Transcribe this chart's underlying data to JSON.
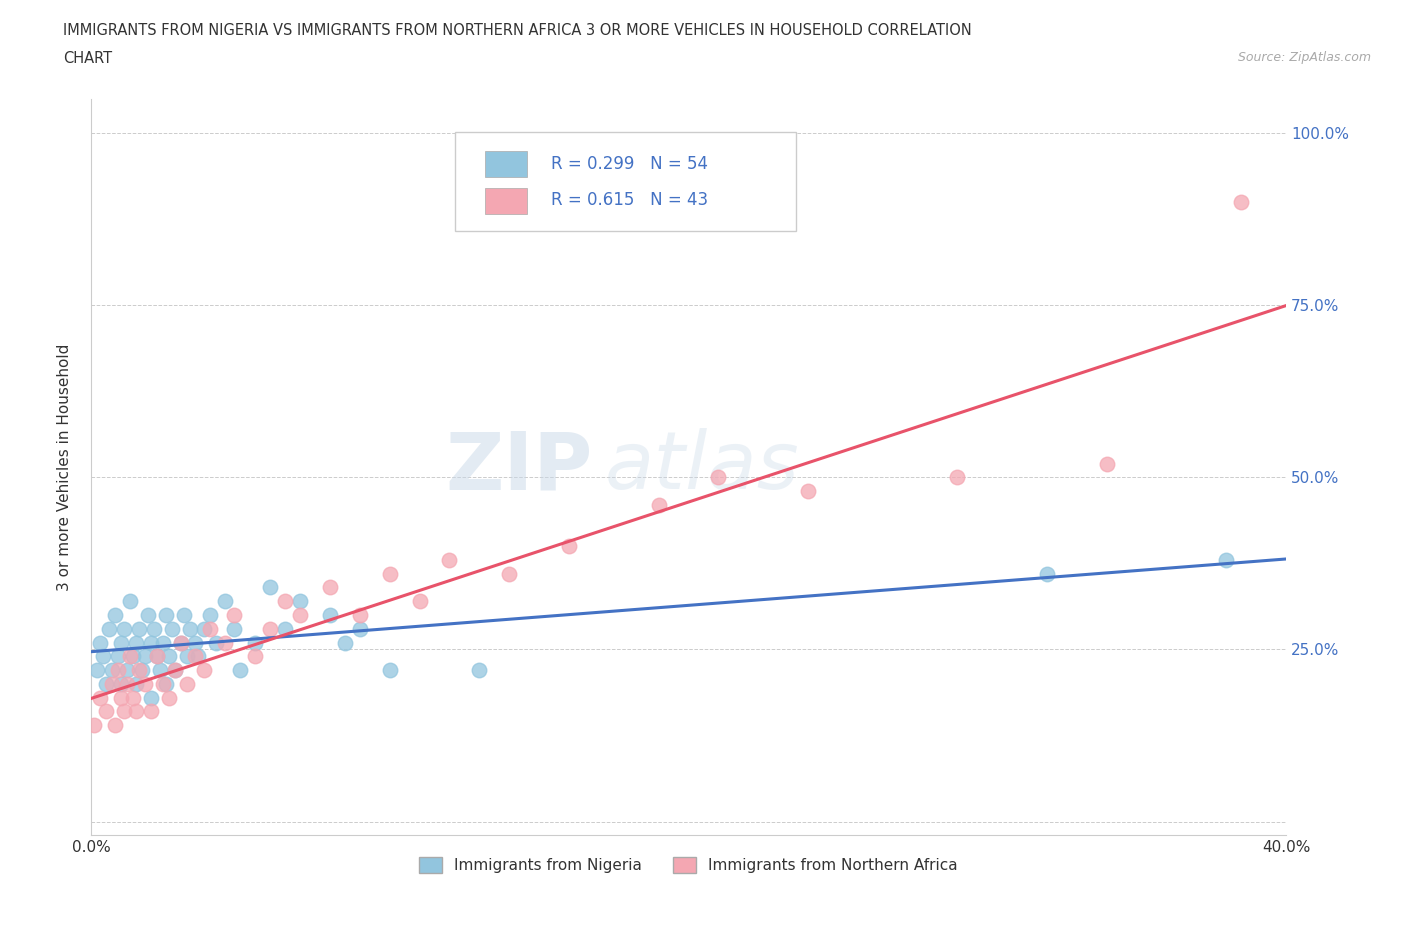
{
  "title_line1": "IMMIGRANTS FROM NIGERIA VS IMMIGRANTS FROM NORTHERN AFRICA 3 OR MORE VEHICLES IN HOUSEHOLD CORRELATION",
  "title_line2": "CHART",
  "source_text": "Source: ZipAtlas.com",
  "ylabel": "3 or more Vehicles in Household",
  "xmin": 0.0,
  "xmax": 0.4,
  "ymin": -0.02,
  "ymax": 1.05,
  "x_ticks": [
    0.0,
    0.1,
    0.2,
    0.3,
    0.4
  ],
  "x_tick_labels": [
    "0.0%",
    "",
    "",
    "",
    "40.0%"
  ],
  "y_ticks": [
    0.0,
    0.25,
    0.5,
    0.75,
    1.0
  ],
  "y_tick_labels": [
    "",
    "25.0%",
    "50.0%",
    "75.0%",
    "100.0%"
  ],
  "nigeria_color": "#92c5de",
  "n_africa_color": "#f4a7b2",
  "nigeria_line_color": "#4472c4",
  "n_africa_line_color": "#e8536a",
  "nigeria_R": 0.299,
  "nigeria_N": 54,
  "n_africa_R": 0.615,
  "n_africa_N": 43,
  "legend_label_nigeria": "Immigrants from Nigeria",
  "legend_label_n_africa": "Immigrants from Northern Africa",
  "watermark_zip": "ZIP",
  "watermark_atlas": "atlas",
  "background_color": "#ffffff",
  "grid_color": "#cccccc",
  "nigeria_x": [
    0.002,
    0.003,
    0.004,
    0.005,
    0.006,
    0.007,
    0.008,
    0.009,
    0.01,
    0.01,
    0.011,
    0.012,
    0.013,
    0.014,
    0.015,
    0.015,
    0.016,
    0.017,
    0.018,
    0.019,
    0.02,
    0.02,
    0.021,
    0.022,
    0.023,
    0.024,
    0.025,
    0.025,
    0.026,
    0.027,
    0.028,
    0.03,
    0.031,
    0.032,
    0.033,
    0.035,
    0.036,
    0.038,
    0.04,
    0.042,
    0.045,
    0.048,
    0.05,
    0.055,
    0.06,
    0.065,
    0.07,
    0.08,
    0.085,
    0.09,
    0.1,
    0.13,
    0.32,
    0.38
  ],
  "nigeria_y": [
    0.22,
    0.26,
    0.24,
    0.2,
    0.28,
    0.22,
    0.3,
    0.24,
    0.26,
    0.2,
    0.28,
    0.22,
    0.32,
    0.24,
    0.26,
    0.2,
    0.28,
    0.22,
    0.24,
    0.3,
    0.26,
    0.18,
    0.28,
    0.24,
    0.22,
    0.26,
    0.2,
    0.3,
    0.24,
    0.28,
    0.22,
    0.26,
    0.3,
    0.24,
    0.28,
    0.26,
    0.24,
    0.28,
    0.3,
    0.26,
    0.32,
    0.28,
    0.22,
    0.26,
    0.34,
    0.28,
    0.32,
    0.3,
    0.26,
    0.28,
    0.22,
    0.22,
    0.36,
    0.38
  ],
  "n_africa_x": [
    0.001,
    0.003,
    0.005,
    0.007,
    0.008,
    0.009,
    0.01,
    0.011,
    0.012,
    0.013,
    0.014,
    0.015,
    0.016,
    0.018,
    0.02,
    0.022,
    0.024,
    0.026,
    0.028,
    0.03,
    0.032,
    0.035,
    0.038,
    0.04,
    0.045,
    0.048,
    0.055,
    0.06,
    0.065,
    0.07,
    0.08,
    0.09,
    0.1,
    0.11,
    0.12,
    0.14,
    0.16,
    0.19,
    0.21,
    0.24,
    0.29,
    0.34,
    0.385
  ],
  "n_africa_y": [
    0.14,
    0.18,
    0.16,
    0.2,
    0.14,
    0.22,
    0.18,
    0.16,
    0.2,
    0.24,
    0.18,
    0.16,
    0.22,
    0.2,
    0.16,
    0.24,
    0.2,
    0.18,
    0.22,
    0.26,
    0.2,
    0.24,
    0.22,
    0.28,
    0.26,
    0.3,
    0.24,
    0.28,
    0.32,
    0.3,
    0.34,
    0.3,
    0.36,
    0.32,
    0.38,
    0.36,
    0.4,
    0.46,
    0.5,
    0.48,
    0.5,
    0.52,
    0.9
  ]
}
